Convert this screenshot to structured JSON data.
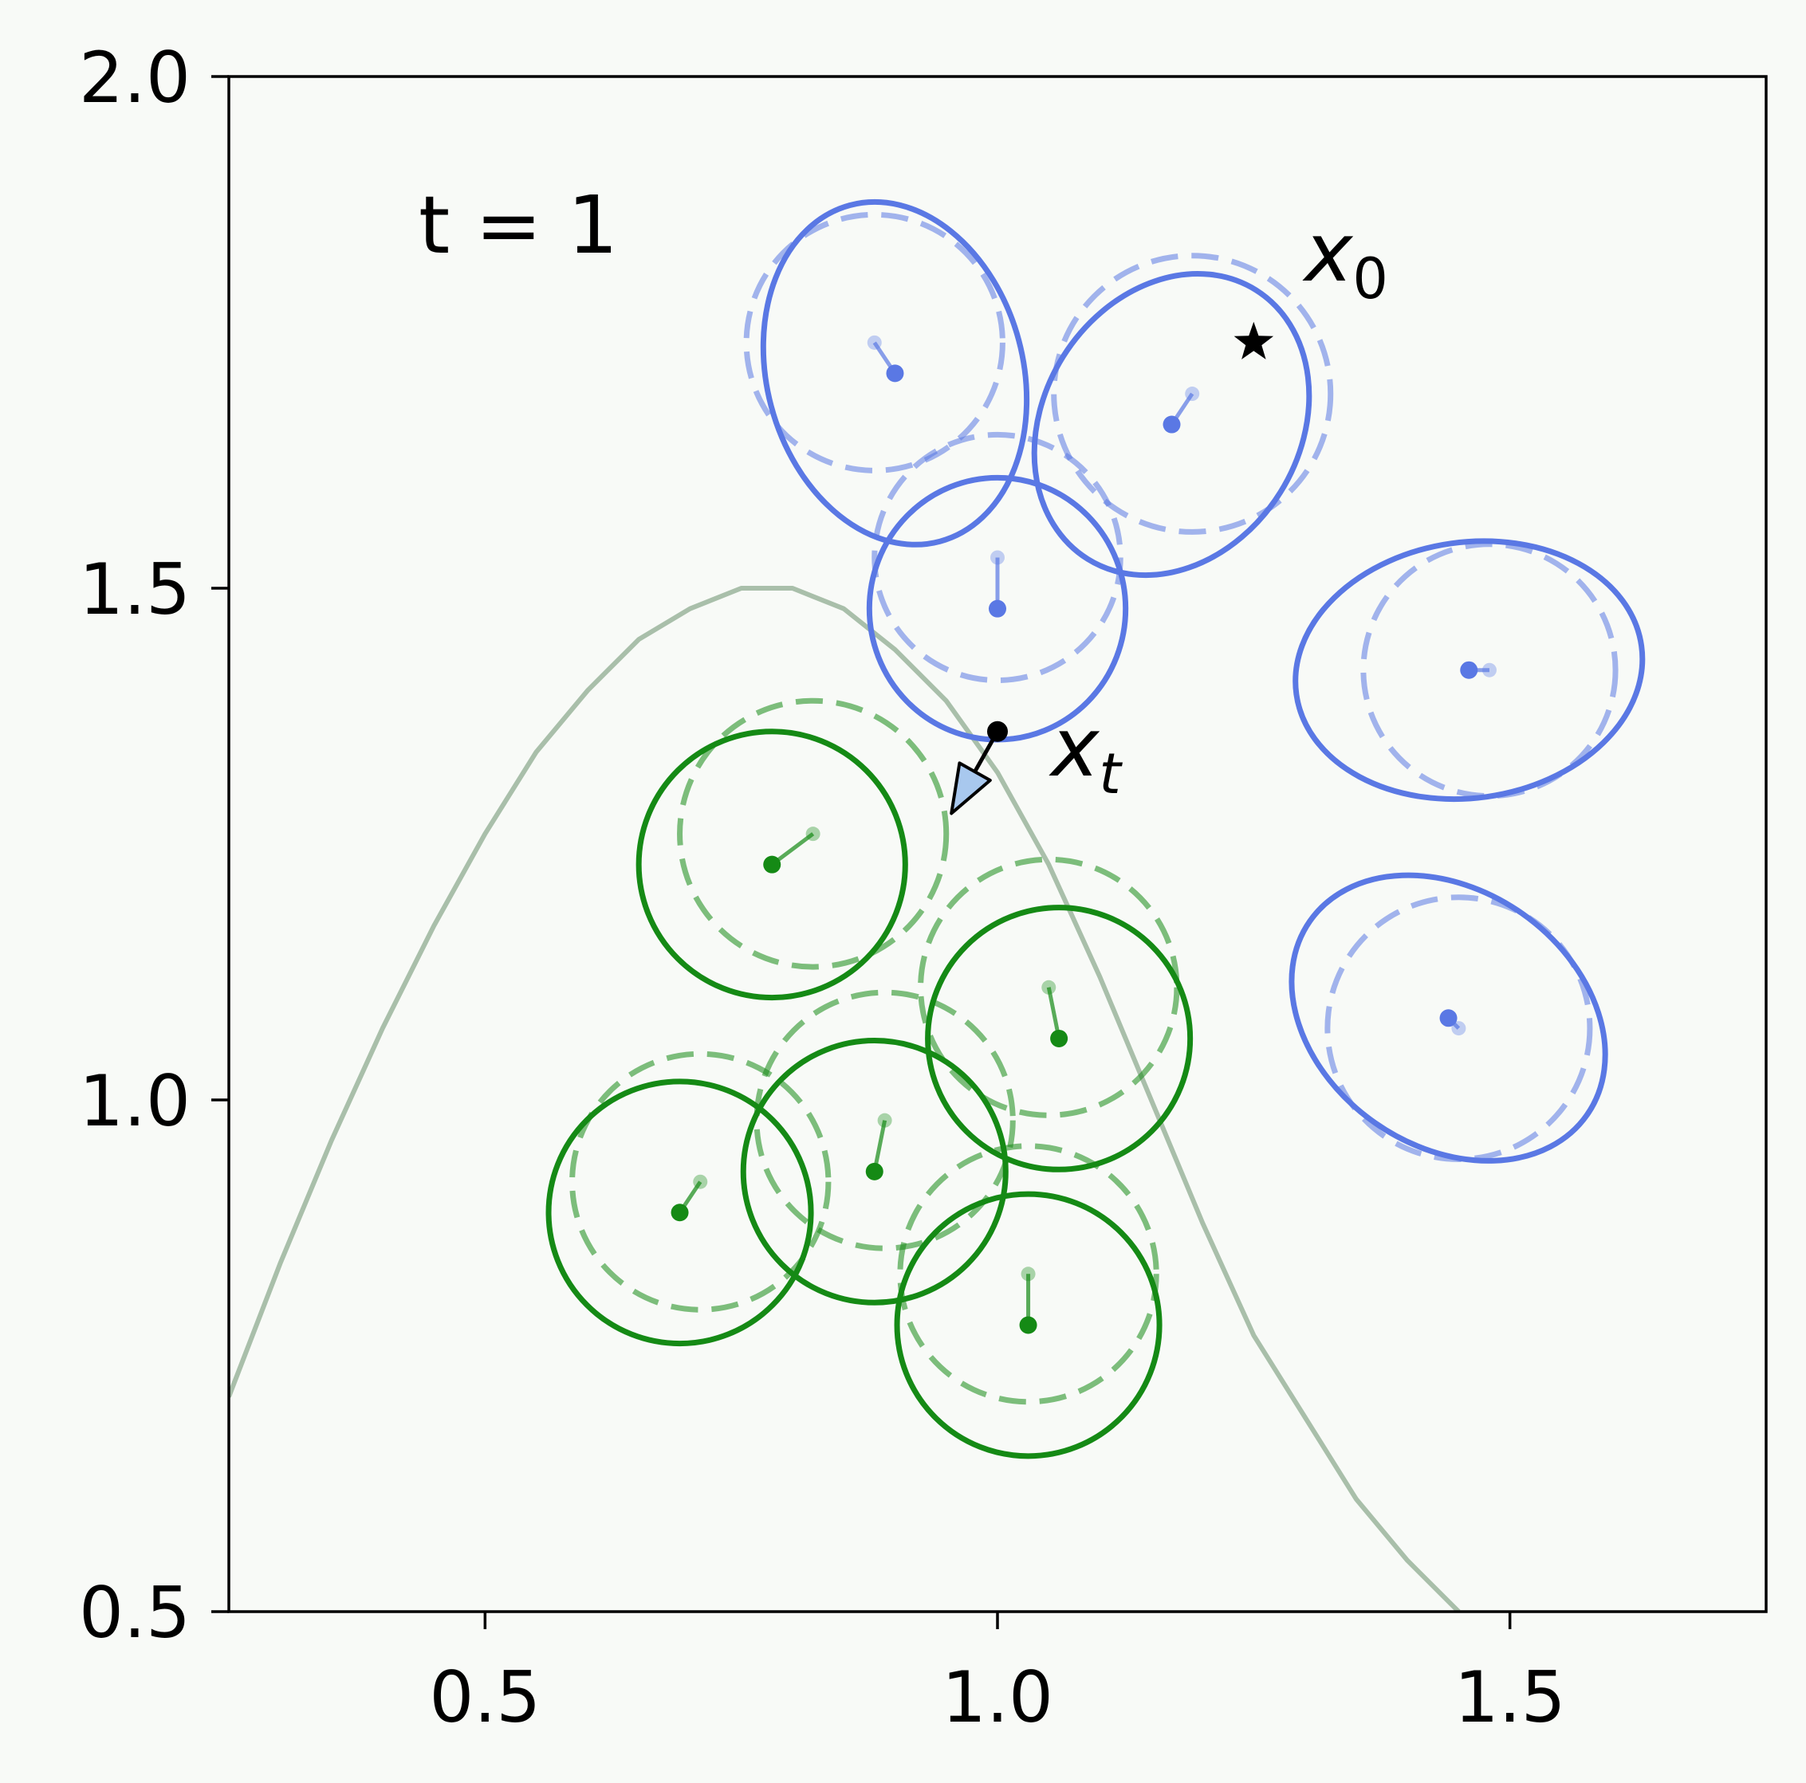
{
  "chart_data": {
    "type": "scatter",
    "xlim": [
      0.25,
      1.75
    ],
    "ylim": [
      0.5,
      2.0
    ],
    "x_ticks": [
      "0.5",
      "1.0",
      "1.5"
    ],
    "y_ticks": [
      "0.5",
      "1.0",
      "1.5",
      "2.0"
    ],
    "grid": false,
    "annotations": {
      "time_label": "t = 1",
      "x0_label": "x",
      "x0_sub": "0",
      "xt_label": "x",
      "xt_sub": "t"
    },
    "curve": {
      "color": "#a9bfaa",
      "points": [
        [
          0.25,
          0.71
        ],
        [
          0.3,
          0.84
        ],
        [
          0.35,
          0.96
        ],
        [
          0.4,
          1.07
        ],
        [
          0.45,
          1.17
        ],
        [
          0.5,
          1.26
        ],
        [
          0.55,
          1.34
        ],
        [
          0.6,
          1.4
        ],
        [
          0.65,
          1.45
        ],
        [
          0.7,
          1.48
        ],
        [
          0.75,
          1.5
        ],
        [
          0.8,
          1.5
        ],
        [
          0.85,
          1.48
        ],
        [
          0.9,
          1.44
        ],
        [
          0.95,
          1.39
        ],
        [
          1.0,
          1.32
        ],
        [
          1.05,
          1.23
        ],
        [
          1.1,
          1.12
        ],
        [
          1.15,
          1.0
        ],
        [
          1.2,
          0.88
        ],
        [
          1.25,
          0.77
        ],
        [
          1.3,
          0.69
        ],
        [
          1.35,
          0.61
        ],
        [
          1.4,
          0.55
        ],
        [
          1.45,
          0.5
        ]
      ]
    },
    "x0": [
      1.25,
      1.74
    ],
    "xt": [
      1.0,
      1.36
    ],
    "arrow_tip": [
      0.955,
      1.28
    ],
    "clusters": [
      {
        "name": "blue",
        "color": "#5a78e4",
        "items": [
          {
            "center": [
              0.9,
              1.71
            ],
            "prev": [
              0.88,
              1.74
            ],
            "rx": 0.125,
            "ry": 0.17,
            "rot": -15,
            "prev_r": 0.125
          },
          {
            "center": [
              1.17,
              1.66
            ],
            "prev": [
              1.19,
              1.69
            ],
            "rx": 0.125,
            "ry": 0.155,
            "rot": 32,
            "prev_r": 0.135
          },
          {
            "center": [
              1.0,
              1.48
            ],
            "prev": [
              1.0,
              1.53
            ],
            "rx": 0.125,
            "ry": 0.128,
            "rot": 0,
            "prev_r": 0.12
          },
          {
            "center": [
              1.46,
              1.42
            ],
            "prev": [
              1.48,
              1.42
            ],
            "rx": 0.17,
            "ry": 0.125,
            "rot": -8,
            "prev_r": 0.123
          },
          {
            "center": [
              1.44,
              1.08
            ],
            "prev": [
              1.45,
              1.07
            ],
            "rx": 0.165,
            "ry": 0.125,
            "rot": 35,
            "prev_r": 0.128
          }
        ]
      },
      {
        "name": "green",
        "color": "#158a15",
        "items": [
          {
            "center": [
              0.78,
              1.23
            ],
            "prev": [
              0.82,
              1.26
            ],
            "rx": 0.13,
            "ry": 0.13,
            "rot": 0,
            "prev_r": 0.13
          },
          {
            "center": [
              1.06,
              1.06
            ],
            "prev": [
              1.05,
              1.11
            ],
            "rx": 0.128,
            "ry": 0.128,
            "rot": 0,
            "prev_r": 0.125
          },
          {
            "center": [
              0.88,
              0.93
            ],
            "prev": [
              0.89,
              0.98
            ],
            "rx": 0.128,
            "ry": 0.128,
            "rot": 0,
            "prev_r": 0.125
          },
          {
            "center": [
              0.69,
              0.89
            ],
            "prev": [
              0.71,
              0.92
            ],
            "rx": 0.128,
            "ry": 0.128,
            "rot": 0,
            "prev_r": 0.125
          },
          {
            "center": [
              1.03,
              0.78
            ],
            "prev": [
              1.03,
              0.83
            ],
            "rx": 0.128,
            "ry": 0.128,
            "rot": 0,
            "prev_r": 0.125
          }
        ]
      }
    ]
  }
}
